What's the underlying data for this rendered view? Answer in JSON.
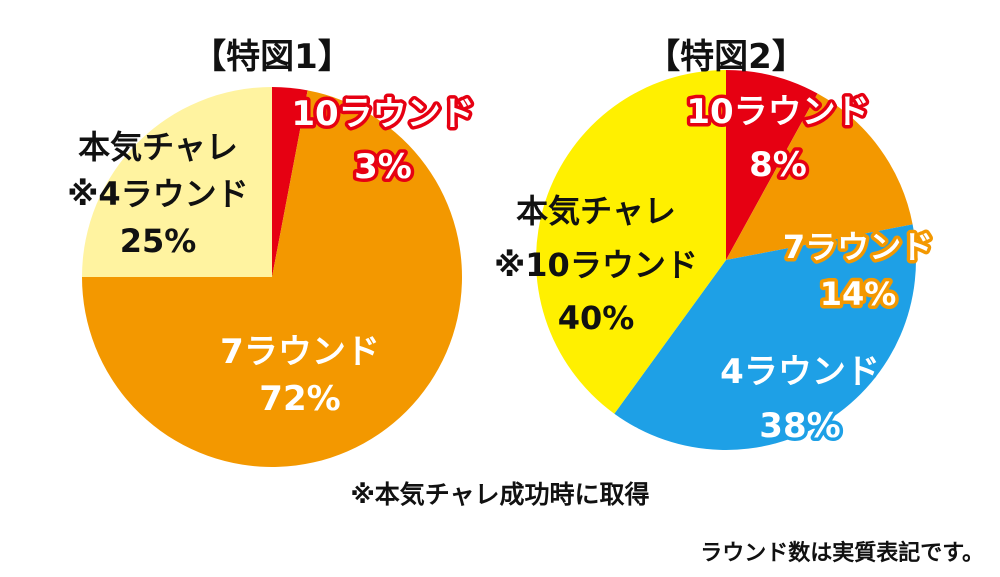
{
  "chart_data": [
    {
      "type": "pie",
      "title": "【特図1】",
      "slices": [
        {
          "label": "10ラウンド",
          "pct_text": "3%",
          "value": 3,
          "color": "#e60012",
          "label_style": "white-red"
        },
        {
          "label": "7ラウンド",
          "pct_text": "72%",
          "value": 72,
          "color": "#f39800",
          "label_style": "white-plain"
        },
        {
          "label": "本気チャレ",
          "label2": "※4ラウンド",
          "pct_text": "25%",
          "value": 25,
          "color": "#fff3a0",
          "label_style": "black-plain"
        }
      ]
    },
    {
      "type": "pie",
      "title": "【特図2】",
      "slices": [
        {
          "label": "10ラウンド",
          "pct_text": "8%",
          "value": 8,
          "color": "#e60012",
          "label_style": "white-red"
        },
        {
          "label": "7ラウンド",
          "pct_text": "14%",
          "value": 14,
          "color": "#f39800",
          "label_style": "white-orange"
        },
        {
          "label": "4ラウンド",
          "pct_text": "38%",
          "value": 38,
          "color": "#1ea0e6",
          "label_style": "white-blue"
        },
        {
          "label": "本気チャレ",
          "label2": "※10ラウンド",
          "pct_text": "40%",
          "value": 40,
          "color": "#fff000",
          "label_style": "black-plain"
        }
      ]
    }
  ],
  "notes": {
    "footnote": "※本気チャレ成功時に取得",
    "disclaimer": "ラウンド数は実質表記です。"
  }
}
